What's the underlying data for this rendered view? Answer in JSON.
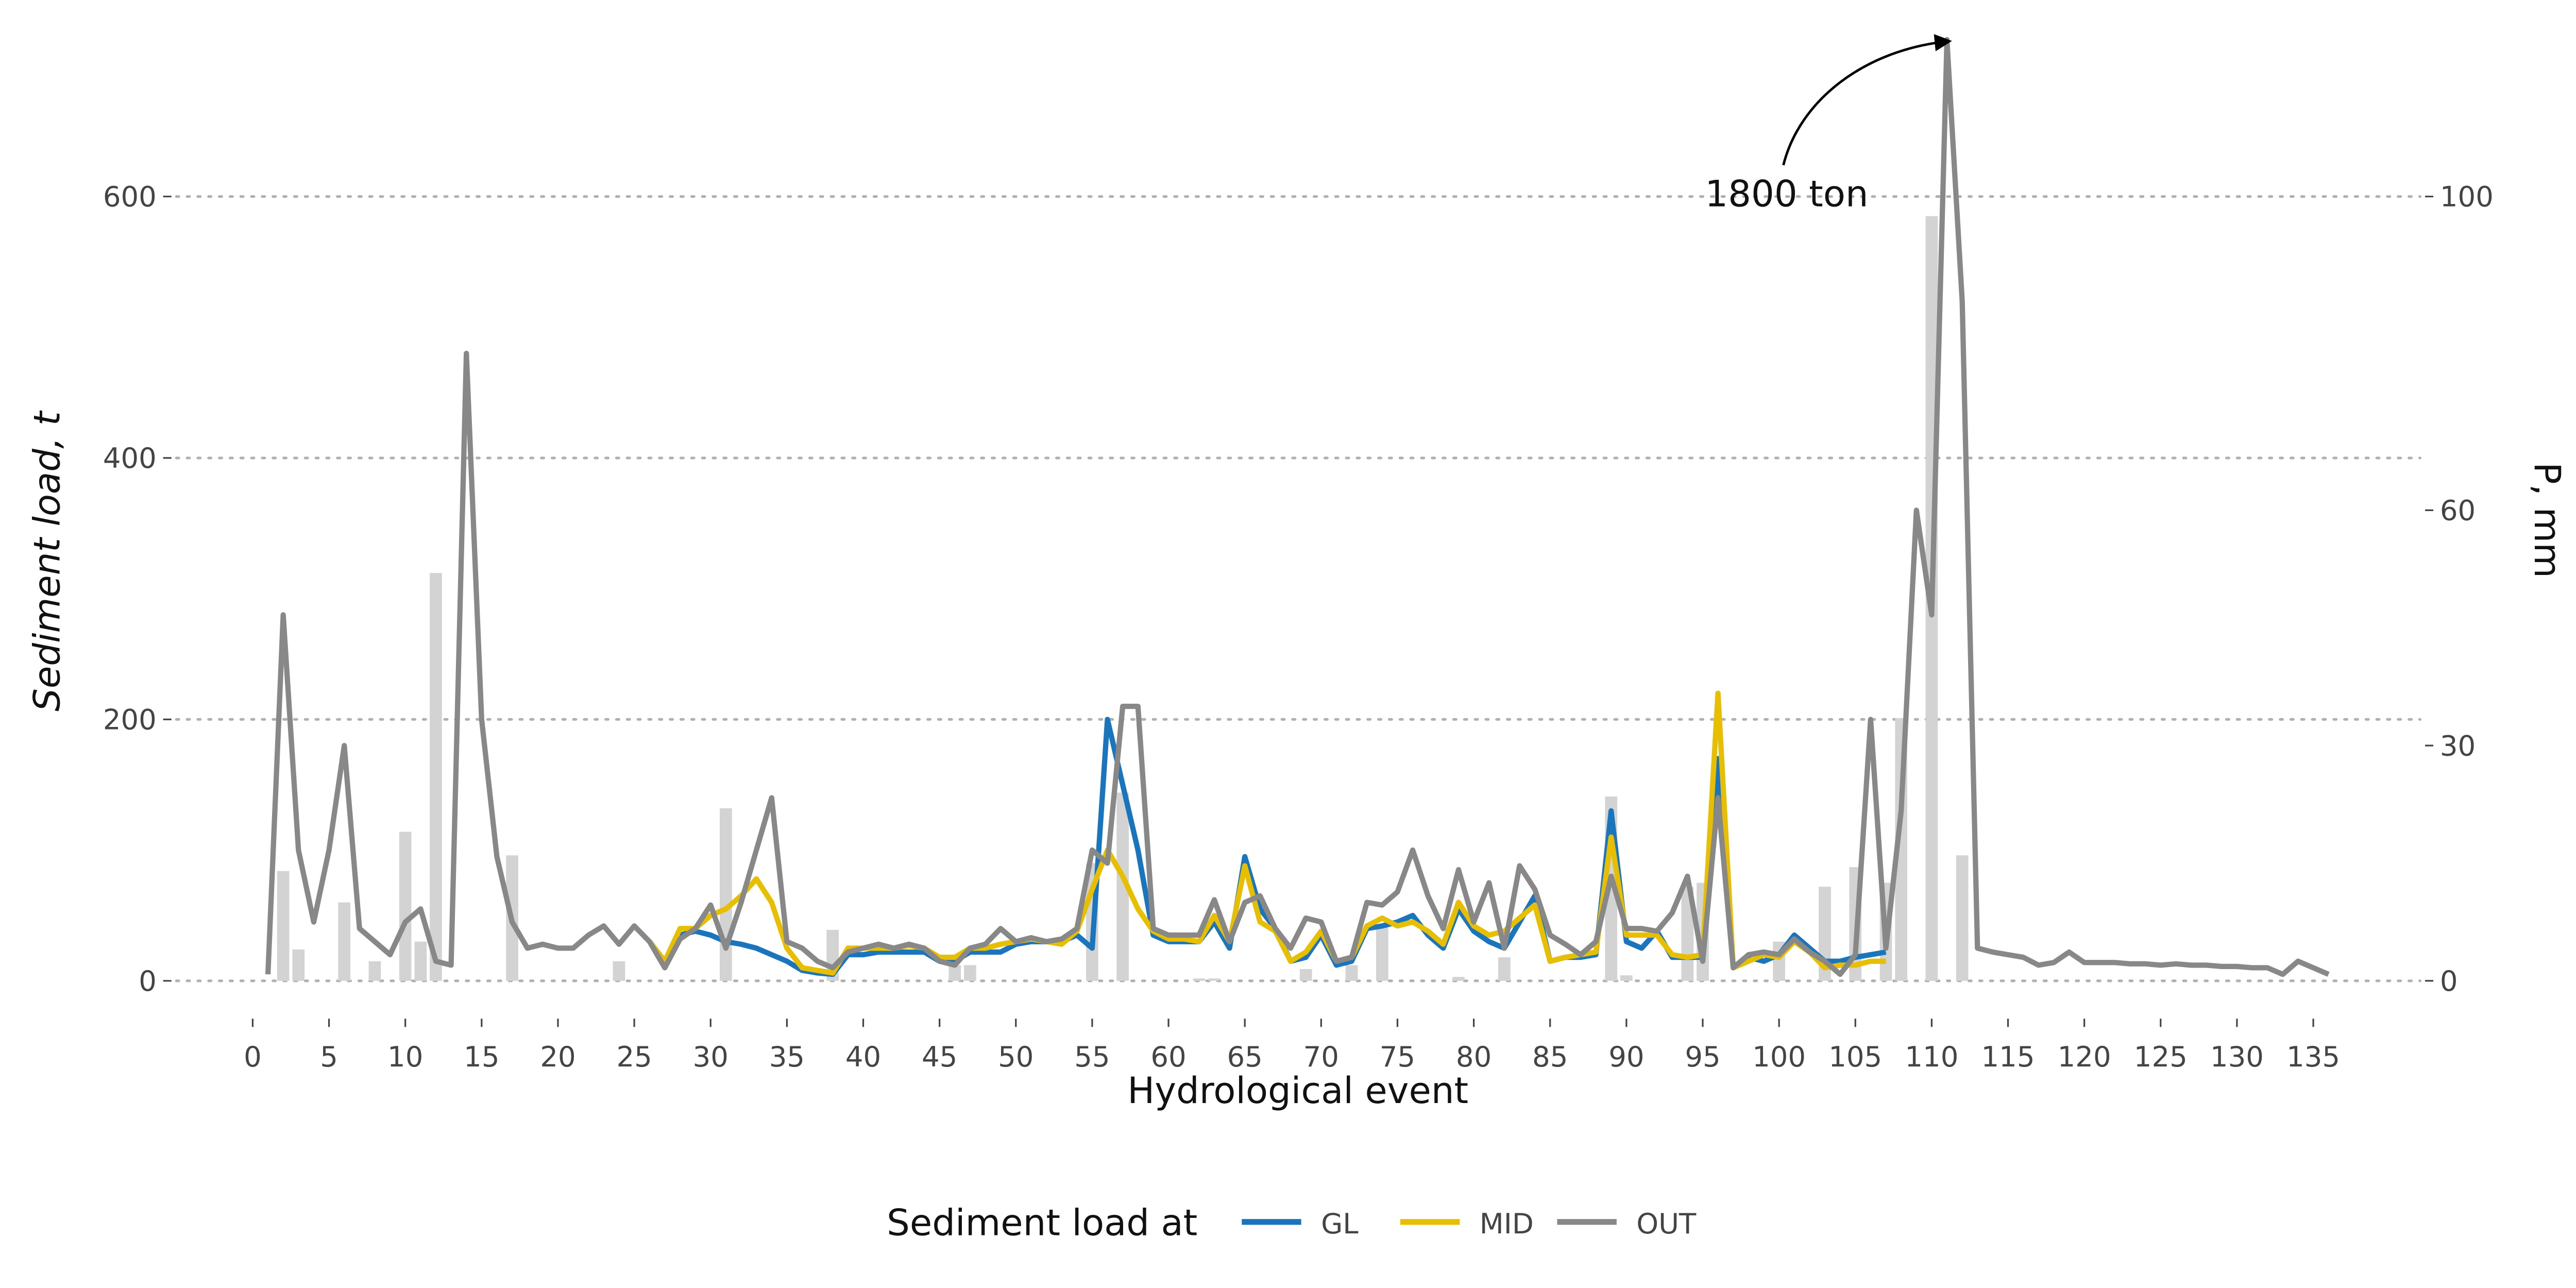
{
  "chart_data": {
    "type": "line",
    "xlabel": "Hydrological event",
    "ylabel": "Sediment load, t",
    "y2label": "P, mm",
    "annotation": "1800 ton",
    "legend_title": "Sediment load at",
    "legend": "bottom",
    "grid": true,
    "xlim": [
      -5,
      142
    ],
    "xticks": [
      0,
      5,
      10,
      15,
      20,
      25,
      30,
      35,
      40,
      45,
      50,
      55,
      60,
      65,
      70,
      75,
      80,
      85,
      90,
      95,
      100,
      105,
      110,
      115,
      120,
      125,
      130,
      135
    ],
    "ylim": [
      -10,
      730
    ],
    "yticks": [
      0,
      200,
      400,
      600
    ],
    "y2lim": [
      -1.667,
      121.667
    ],
    "y2ticks": [
      0,
      30,
      60,
      100
    ],
    "x": [
      1,
      2,
      3,
      4,
      5,
      6,
      7,
      8,
      9,
      10,
      11,
      12,
      13,
      14,
      15,
      16,
      17,
      18,
      19,
      20,
      21,
      22,
      23,
      24,
      25,
      26,
      27,
      28,
      29,
      30,
      31,
      32,
      33,
      34,
      35,
      36,
      37,
      38,
      39,
      40,
      41,
      42,
      43,
      44,
      45,
      46,
      47,
      48,
      49,
      50,
      51,
      52,
      53,
      54,
      55,
      56,
      57,
      58,
      59,
      60,
      61,
      62,
      63,
      64,
      65,
      66,
      67,
      68,
      69,
      70,
      71,
      72,
      73,
      74,
      75,
      76,
      77,
      78,
      79,
      80,
      81,
      82,
      83,
      84,
      85,
      86,
      87,
      88,
      89,
      90,
      91,
      92,
      93,
      94,
      95,
      96,
      97,
      98,
      99,
      100,
      101,
      102,
      103,
      104,
      105,
      106,
      107,
      108,
      109,
      110,
      111,
      112,
      113,
      114,
      115,
      116,
      117,
      118,
      119,
      120,
      121,
      122,
      123,
      124,
      125,
      126,
      127,
      128,
      129,
      130,
      131,
      132,
      133,
      134,
      135,
      136
    ],
    "bars": {
      "axis": "y2",
      "color": "#d3d3d3",
      "x": [
        2,
        3,
        6,
        8,
        10,
        11,
        12,
        17,
        24,
        31,
        38,
        46,
        47,
        55,
        57,
        62,
        63,
        69,
        72,
        74,
        79,
        82,
        89,
        90,
        94,
        95,
        100,
        103,
        105,
        107,
        108,
        110,
        112
      ],
      "values": [
        14,
        4,
        10,
        2.5,
        19,
        5,
        52,
        16,
        2.5,
        22,
        6.5,
        2,
        2,
        15,
        24,
        0.3,
        0.3,
        1.5,
        2,
        7,
        0.5,
        3,
        23.5,
        0.7,
        12,
        12.5,
        5,
        12,
        14.5,
        12.5,
        33.5,
        97.5,
        16
      ]
    },
    "series": [
      {
        "name": "GL",
        "color": "#1a75bc",
        "values": [
          null,
          null,
          null,
          null,
          null,
          null,
          null,
          null,
          null,
          null,
          null,
          null,
          null,
          null,
          null,
          null,
          null,
          null,
          null,
          null,
          null,
          null,
          null,
          null,
          null,
          30,
          15,
          35,
          38,
          35,
          30,
          28,
          25,
          20,
          15,
          8,
          6,
          5,
          20,
          20,
          22,
          22,
          22,
          22,
          15,
          15,
          22,
          22,
          22,
          28,
          30,
          30,
          30,
          35,
          25,
          200,
          150,
          100,
          35,
          30,
          30,
          30,
          45,
          25,
          95,
          55,
          40,
          15,
          18,
          35,
          12,
          15,
          40,
          42,
          45,
          50,
          35,
          25,
          55,
          38,
          30,
          25,
          45,
          65,
          15,
          18,
          18,
          20,
          130,
          30,
          25,
          38,
          18,
          18,
          18,
          170,
          10,
          18,
          15,
          20,
          35,
          25,
          15,
          15,
          18,
          20,
          22,
          null,
          null,
          null,
          null,
          null,
          null,
          null,
          null,
          null,
          null,
          null,
          null,
          null,
          null,
          null,
          null,
          null,
          null,
          null,
          null,
          null,
          null,
          null,
          null,
          null,
          null,
          null,
          null,
          null
        ]
      },
      {
        "name": "MID",
        "color": "#e8bf00",
        "values": [
          null,
          null,
          null,
          null,
          null,
          null,
          null,
          null,
          null,
          null,
          null,
          null,
          null,
          null,
          null,
          null,
          null,
          null,
          null,
          null,
          null,
          null,
          null,
          null,
          null,
          30,
          15,
          40,
          40,
          50,
          55,
          65,
          78,
          60,
          25,
          10,
          8,
          6,
          25,
          25,
          25,
          25,
          27,
          25,
          18,
          18,
          25,
          25,
          28,
          30,
          32,
          30,
          28,
          38,
          70,
          100,
          80,
          55,
          38,
          32,
          32,
          30,
          50,
          30,
          88,
          45,
          38,
          15,
          22,
          38,
          15,
          18,
          42,
          48,
          42,
          45,
          38,
          28,
          60,
          42,
          35,
          38,
          48,
          58,
          15,
          18,
          20,
          22,
          110,
          35,
          35,
          35,
          20,
          18,
          20,
          220,
          10,
          15,
          20,
          18,
          30,
          22,
          10,
          12,
          12,
          15,
          15,
          null,
          null,
          null,
          null,
          null,
          null,
          null,
          null,
          null,
          null,
          null,
          null,
          null,
          null,
          null,
          null,
          null,
          null,
          null,
          null,
          null,
          null,
          null,
          null,
          null,
          null,
          null,
          null,
          null
        ]
      },
      {
        "name": "OUT",
        "color": "#888888",
        "values": [
          5,
          280,
          100,
          45,
          100,
          180,
          40,
          30,
          20,
          45,
          55,
          15,
          12,
          480,
          200,
          95,
          45,
          25,
          28,
          25,
          25,
          35,
          42,
          28,
          42,
          30,
          10,
          32,
          40,
          58,
          25,
          60,
          100,
          140,
          30,
          25,
          15,
          10,
          22,
          25,
          28,
          25,
          28,
          25,
          15,
          12,
          25,
          28,
          40,
          30,
          33,
          30,
          32,
          40,
          100,
          90,
          210,
          210,
          40,
          35,
          35,
          35,
          62,
          30,
          60,
          65,
          40,
          25,
          48,
          45,
          15,
          18,
          60,
          58,
          68,
          100,
          65,
          40,
          85,
          45,
          75,
          25,
          88,
          70,
          35,
          28,
          20,
          30,
          80,
          40,
          40,
          38,
          52,
          80,
          15,
          140,
          10,
          20,
          22,
          20,
          32,
          22,
          15,
          5,
          20,
          200,
          25,
          130,
          360,
          280,
          720,
          520,
          25,
          22,
          20,
          18,
          12,
          14,
          22,
          14,
          14,
          14,
          13,
          13,
          12,
          13,
          12,
          12,
          11,
          11,
          10,
          10,
          5,
          15,
          10,
          5
        ]
      }
    ]
  }
}
